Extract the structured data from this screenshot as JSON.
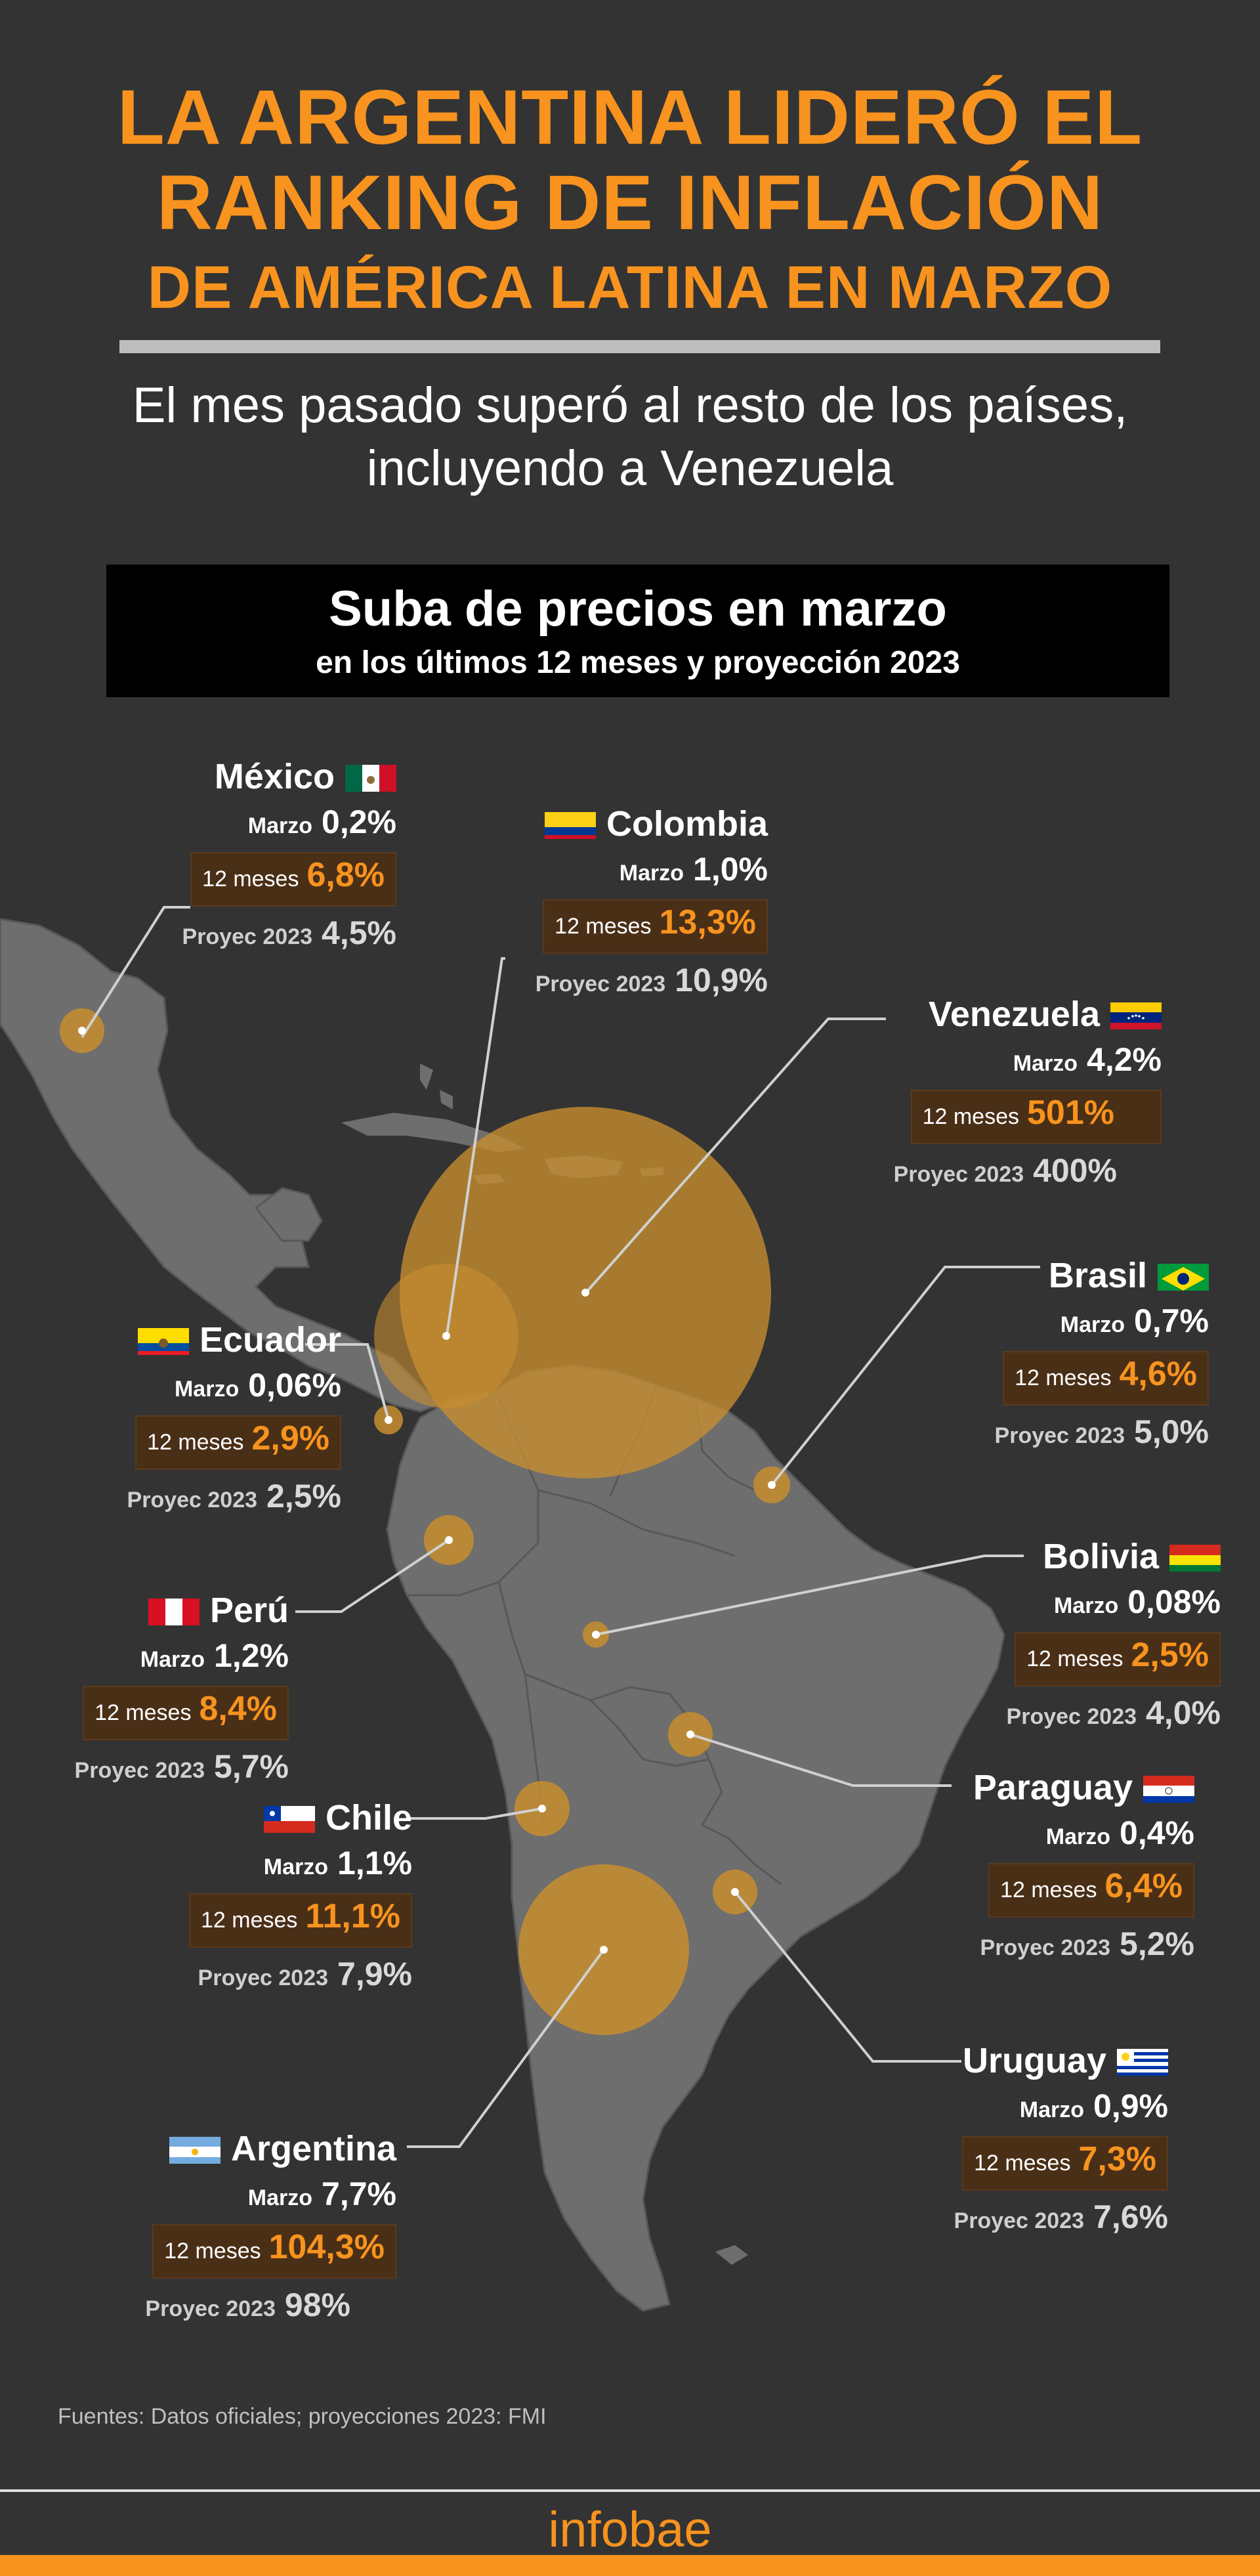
{
  "headline": {
    "line1": "LA ARGENTINA LIDERÓ EL",
    "line2": "RANKING DE INFLACIÓN",
    "line3": "DE AMÉRICA LATINA EN MARZO"
  },
  "subtitle": {
    "line1": "El mes pasado superó al resto de los países,",
    "line2": "incluyendo a Venezuela"
  },
  "chart_header": {
    "title": "Suba de precios en marzo",
    "subtitle": "en los últimos 12 meses y proyección 2023"
  },
  "labels": {
    "marzo": "Marzo",
    "doce_meses": "12 meses",
    "proyec": "Proyec 2023"
  },
  "countries": [
    {
      "id": "mexico",
      "name": "México",
      "marzo": "0,2%",
      "doce_meses": "6,8%",
      "proyec": "4,5%",
      "flag": "mexico-flag"
    },
    {
      "id": "colombia",
      "name": "Colombia",
      "marzo": "1,0%",
      "doce_meses": "13,3%",
      "proyec": "10,9%",
      "flag": "colombia-flag"
    },
    {
      "id": "venezuela",
      "name": "Venezuela",
      "marzo": "4,2%",
      "doce_meses": "501%",
      "proyec": "400%",
      "flag": "venezuela-flag"
    },
    {
      "id": "brasil",
      "name": "Brasil",
      "marzo": "0,7%",
      "doce_meses": "4,6%",
      "proyec": "5,0%",
      "flag": "brasil-flag"
    },
    {
      "id": "ecuador",
      "name": "Ecuador",
      "marzo": "0,06%",
      "doce_meses": "2,9%",
      "proyec": "2,5%",
      "flag": "ecuador-flag"
    },
    {
      "id": "bolivia",
      "name": "Bolivia",
      "marzo": "0,08%",
      "doce_meses": "2,5%",
      "proyec": "4,0%",
      "flag": "bolivia-flag"
    },
    {
      "id": "peru",
      "name": "Perú",
      "marzo": "1,2%",
      "doce_meses": "8,4%",
      "proyec": "5,7%",
      "flag": "peru-flag"
    },
    {
      "id": "paraguay",
      "name": "Paraguay",
      "marzo": "0,4%",
      "doce_meses": "6,4%",
      "proyec": "5,2%",
      "flag": "paraguay-flag"
    },
    {
      "id": "chile",
      "name": "Chile",
      "marzo": "1,1%",
      "doce_meses": "11,1%",
      "proyec": "7,9%",
      "flag": "chile-flag"
    },
    {
      "id": "uruguay",
      "name": "Uruguay",
      "marzo": "0,9%",
      "doce_meses": "7,3%",
      "proyec": "7,6%",
      "flag": "uruguay-flag"
    },
    {
      "id": "argentina",
      "name": "Argentina",
      "marzo": "7,7%",
      "doce_meses": "104,3%",
      "proyec": "98%",
      "flag": "argentina-flag"
    }
  ],
  "source": "Fuentes: Datos  oficiales; proyecciones 2023: FMI",
  "brand": "infobae",
  "colors": {
    "background": "#333333",
    "accent": "#f7931e",
    "land": "#6e6e6e",
    "bubble": "#c88e2f",
    "highlight_box": "#4a2f17"
  }
}
